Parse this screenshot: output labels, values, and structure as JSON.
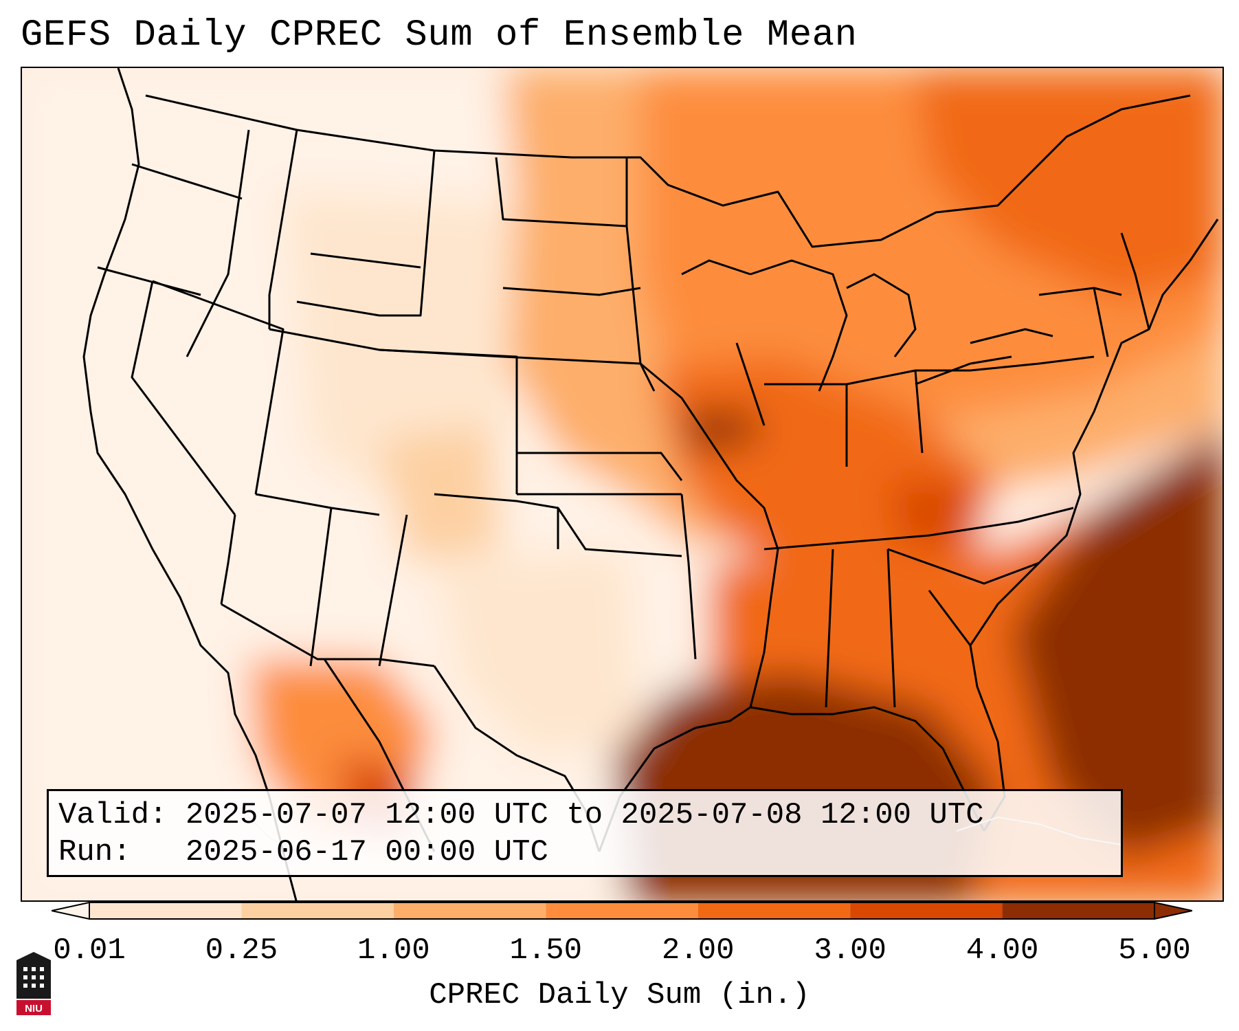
{
  "title": "GEFS Daily CPREC Sum of Ensemble Mean",
  "valid_label": "Valid:",
  "valid_range": "2025-07-07 12:00 UTC to 2025-07-08 12:00 UTC",
  "run_label": "Run:",
  "run_time": "2025-06-17 00:00 UTC",
  "colorbar": {
    "label": "CPREC Daily Sum (in.)",
    "ticks": [
      "0.01",
      "0.25",
      "1.00",
      "1.50",
      "2.00",
      "3.00",
      "4.00",
      "5.00"
    ],
    "colors": [
      "#fff5eb",
      "#fee6ce",
      "#fdd0a2",
      "#fdae6b",
      "#fd8d3c",
      "#f16913",
      "#d94801",
      "#8c2d04"
    ],
    "extend": "both"
  },
  "logo": {
    "text": "NIU",
    "colors": {
      "body": "#1a1a1a",
      "banner": "#c8102e"
    }
  }
}
